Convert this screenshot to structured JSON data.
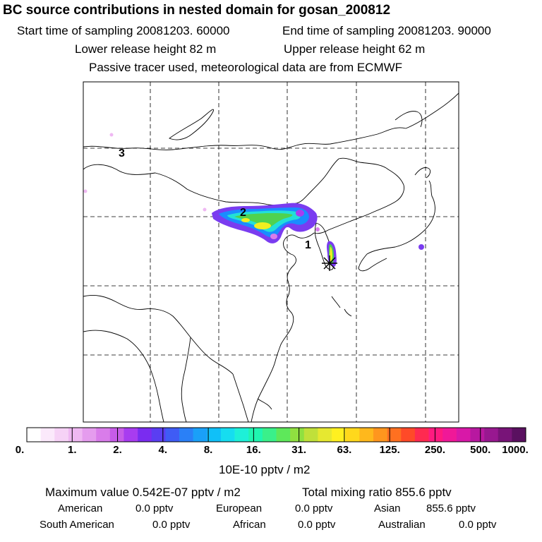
{
  "header": {
    "title": "BC  source contributions in nested domain for gosan_200812",
    "start_label": "Start time of sampling 20081203. 60000",
    "end_label": "End time of sampling 20081203. 90000",
    "lower_label": "Lower release height   82 m",
    "upper_label": "Upper release height   62 m",
    "tracer_note": "Passive tracer used, meteorological data are from ECMWF"
  },
  "map": {
    "cluster_labels": [
      "1",
      "2",
      "3"
    ],
    "colors": {
      "plume_edge": "#7a3cf0",
      "plume_blue": "#1a8cff",
      "plume_cyan": "#22e0d8",
      "plume_green": "#4fd24f",
      "plume_yellow": "#f2ee20",
      "receptor": "#000000"
    }
  },
  "colorbar": {
    "colors": [
      "#ffffff",
      "#fbe9fb",
      "#f6d2f6",
      "#efb8f2",
      "#e59cee",
      "#d97cea",
      "#c75ce8",
      "#a83cf0",
      "#7a2cf0",
      "#5a3ef2",
      "#3f5cf5",
      "#2a80f7",
      "#1aa0f8",
      "#10c0f8",
      "#16ddf0",
      "#1ef0d8",
      "#20f5b0",
      "#3af08a",
      "#5ee85a",
      "#90e040",
      "#c0e03a",
      "#e6e830",
      "#fff020",
      "#ffd81c",
      "#ffb81c",
      "#ff961e",
      "#ff7020",
      "#ff4a28",
      "#ff2a50",
      "#ff1a80",
      "#f01898",
      "#d818a8",
      "#b818a0",
      "#981890",
      "#781478",
      "#5a1060"
    ],
    "ticks": [
      "0.",
      "1.",
      "2.",
      "4.",
      "8.",
      "16.",
      "31.",
      "63.",
      "125.",
      "250.",
      "500.",
      "1000."
    ],
    "unit": "10E-10 pptv / m2"
  },
  "stats": {
    "max_label": "Maximum value  0.542E-07 pptv / m2",
    "total_label": "Total mixing ratio      855.6 pptv",
    "regions": [
      {
        "name": "American",
        "value": "0.0 pptv"
      },
      {
        "name": "European",
        "value": "0.0 pptv"
      },
      {
        "name": "Asian",
        "value": "855.6 pptv"
      },
      {
        "name": "South American",
        "value": "0.0 pptv"
      },
      {
        "name": "African",
        "value": "0.0 pptv"
      },
      {
        "name": "Australian",
        "value": "0.0 pptv"
      }
    ]
  }
}
